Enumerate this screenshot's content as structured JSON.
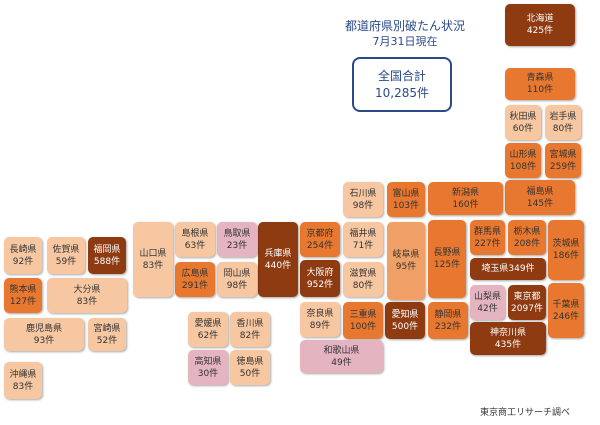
{
  "header": {
    "title": "都道府県別破たん状況",
    "subtitle": "7月31日現在"
  },
  "total": {
    "label": "全国合計",
    "value": "10,285件"
  },
  "source": "東京商工リサーチ調べ",
  "prefectures": [
    {
      "name": "北海道",
      "count": "425件",
      "color": "#8e3b12"
    },
    {
      "name": "青森県",
      "count": "110件",
      "color": "#e8782f"
    },
    {
      "name": "秋田県",
      "count": "60件",
      "color": "#f6c7a1"
    },
    {
      "name": "岩手県",
      "count": "80件",
      "color": "#f6c7a1"
    },
    {
      "name": "山形県",
      "count": "108件",
      "color": "#e8782f"
    },
    {
      "name": "宮城県",
      "count": "259件",
      "color": "#e8782f"
    },
    {
      "name": "福島県",
      "count": "145件",
      "color": "#e8782f"
    },
    {
      "name": "新潟県",
      "count": "160件",
      "color": "#e8782f"
    },
    {
      "name": "富山県",
      "count": "103件",
      "color": "#e8782f"
    },
    {
      "name": "石川県",
      "count": "98件",
      "color": "#f6c7a1"
    },
    {
      "name": "福井県",
      "count": "71件",
      "color": "#f6c7a1"
    },
    {
      "name": "岐阜県",
      "count": "95件",
      "color": "#f0a067"
    },
    {
      "name": "長野県",
      "count": "125件",
      "color": "#e8782f"
    },
    {
      "name": "群馬県",
      "count": "227件",
      "color": "#e8782f"
    },
    {
      "name": "栃木県",
      "count": "208件",
      "color": "#e8782f"
    },
    {
      "name": "茨城県",
      "count": "186件",
      "color": "#e8782f"
    },
    {
      "name": "埼玉県349件",
      "count": "",
      "color": "#8e3b12"
    },
    {
      "name": "山梨県",
      "count": "42件",
      "color": "#e4b5c1"
    },
    {
      "name": "東京都",
      "count": "2097件",
      "color": "#8e3b12"
    },
    {
      "name": "千葉県",
      "count": "246件",
      "color": "#e8782f"
    },
    {
      "name": "神奈川県",
      "count": "435件",
      "color": "#8e3b12"
    },
    {
      "name": "静岡県",
      "count": "232件",
      "color": "#e8782f"
    },
    {
      "name": "愛知県",
      "count": "500件",
      "color": "#8e3b12"
    },
    {
      "name": "京都府",
      "count": "254件",
      "color": "#e8782f"
    },
    {
      "name": "滋賀県",
      "count": "80件",
      "color": "#f6c7a1"
    },
    {
      "name": "大阪府",
      "count": "952件",
      "color": "#8e3b12"
    },
    {
      "name": "三重県",
      "count": "100件",
      "color": "#e8782f"
    },
    {
      "name": "奈良県",
      "count": "89件",
      "color": "#f6c7a1"
    },
    {
      "name": "和歌山県",
      "count": "49件",
      "color": "#e4b5c1"
    },
    {
      "name": "兵庫県",
      "count": "440件",
      "color": "#8e3b12"
    },
    {
      "name": "鳥取県",
      "count": "23件",
      "color": "#e4b5c1"
    },
    {
      "name": "島根県",
      "count": "63件",
      "color": "#f6c7a1"
    },
    {
      "name": "岡山県",
      "count": "98件",
      "color": "#f6c7a1"
    },
    {
      "name": "広島県",
      "count": "291件",
      "color": "#e8782f"
    },
    {
      "name": "山口県",
      "count": "83件",
      "color": "#f6c7a1"
    },
    {
      "name": "愛媛県",
      "count": "62件",
      "color": "#f6c7a1"
    },
    {
      "name": "香川県",
      "count": "82件",
      "color": "#f6c7a1"
    },
    {
      "name": "高知県",
      "count": "30件",
      "color": "#e4b5c1"
    },
    {
      "name": "徳島県",
      "count": "50件",
      "color": "#f6c7a1"
    },
    {
      "name": "長崎県",
      "count": "92件",
      "color": "#f6c7a1"
    },
    {
      "name": "佐賀県",
      "count": "59件",
      "color": "#f6c7a1"
    },
    {
      "name": "福岡県",
      "count": "588件",
      "color": "#8e3b12"
    },
    {
      "name": "熊本県",
      "count": "127件",
      "color": "#e8782f"
    },
    {
      "name": "大分県",
      "count": "83件",
      "color": "#f6c7a1"
    },
    {
      "name": "鹿児島県",
      "count": "93件",
      "color": "#f6c7a1"
    },
    {
      "name": "宮崎県",
      "count": "52件",
      "color": "#f6c7a1"
    },
    {
      "name": "沖縄県",
      "count": "83件",
      "color": "#f6c7a1"
    }
  ]
}
